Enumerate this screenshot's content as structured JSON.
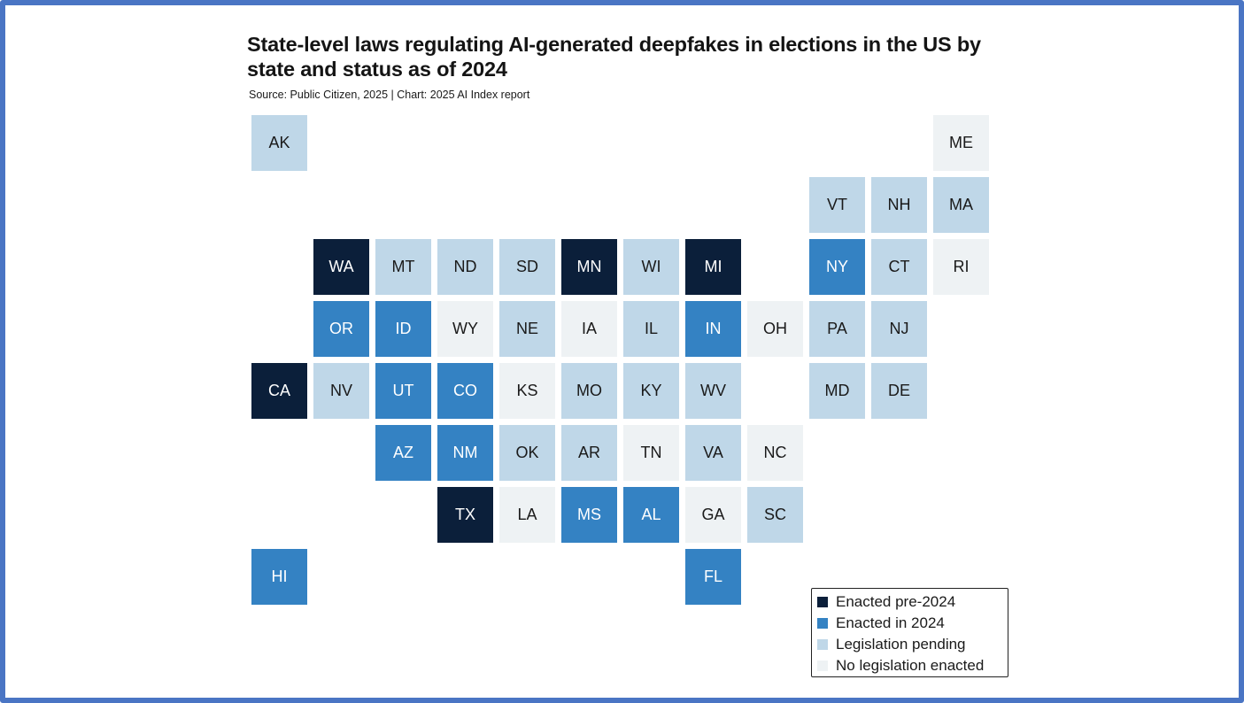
{
  "title": "State-level laws regulating AI-generated deepfakes in elections in the US by state and status as of 2024",
  "subtitle": "Source: Public Citizen, 2025 | Chart: 2025 AI Index report",
  "colors": {
    "frame": "#4a75c4",
    "enacted_pre_2024": "#0b1f3a",
    "enacted_2024": "#3482c3",
    "pending": "#bfd7e8",
    "none": "#eef2f4"
  },
  "legend": {
    "items": [
      {
        "status": "enacted_pre_2024",
        "label": "Enacted pre-2024"
      },
      {
        "status": "enacted_2024",
        "label": "Enacted in 2024"
      },
      {
        "status": "pending",
        "label": "Legislation pending"
      },
      {
        "status": "none",
        "label": "No legislation enacted"
      }
    ]
  },
  "states": [
    {
      "abbr": "AK",
      "status": "pending",
      "row": 0,
      "col": 0
    },
    {
      "abbr": "ME",
      "status": "none",
      "row": 0,
      "col": 11
    },
    {
      "abbr": "VT",
      "status": "pending",
      "row": 1,
      "col": 9
    },
    {
      "abbr": "NH",
      "status": "pending",
      "row": 1,
      "col": 10
    },
    {
      "abbr": "MA",
      "status": "pending",
      "row": 1,
      "col": 11
    },
    {
      "abbr": "WA",
      "status": "enacted_pre_2024",
      "row": 2,
      "col": 1
    },
    {
      "abbr": "MT",
      "status": "pending",
      "row": 2,
      "col": 2
    },
    {
      "abbr": "ND",
      "status": "pending",
      "row": 2,
      "col": 3
    },
    {
      "abbr": "SD",
      "status": "pending",
      "row": 2,
      "col": 4
    },
    {
      "abbr": "MN",
      "status": "enacted_pre_2024",
      "row": 2,
      "col": 5
    },
    {
      "abbr": "WI",
      "status": "pending",
      "row": 2,
      "col": 6
    },
    {
      "abbr": "MI",
      "status": "enacted_pre_2024",
      "row": 2,
      "col": 7
    },
    {
      "abbr": "NY",
      "status": "enacted_2024",
      "row": 2,
      "col": 9
    },
    {
      "abbr": "CT",
      "status": "pending",
      "row": 2,
      "col": 10
    },
    {
      "abbr": "RI",
      "status": "none",
      "row": 2,
      "col": 11
    },
    {
      "abbr": "OR",
      "status": "enacted_2024",
      "row": 3,
      "col": 1
    },
    {
      "abbr": "ID",
      "status": "enacted_2024",
      "row": 3,
      "col": 2
    },
    {
      "abbr": "WY",
      "status": "none",
      "row": 3,
      "col": 3
    },
    {
      "abbr": "NE",
      "status": "pending",
      "row": 3,
      "col": 4
    },
    {
      "abbr": "IA",
      "status": "none",
      "row": 3,
      "col": 5
    },
    {
      "abbr": "IL",
      "status": "pending",
      "row": 3,
      "col": 6
    },
    {
      "abbr": "IN",
      "status": "enacted_2024",
      "row": 3,
      "col": 7
    },
    {
      "abbr": "OH",
      "status": "none",
      "row": 3,
      "col": 8
    },
    {
      "abbr": "PA",
      "status": "pending",
      "row": 3,
      "col": 9
    },
    {
      "abbr": "NJ",
      "status": "pending",
      "row": 3,
      "col": 10
    },
    {
      "abbr": "CA",
      "status": "enacted_pre_2024",
      "row": 4,
      "col": 0
    },
    {
      "abbr": "NV",
      "status": "pending",
      "row": 4,
      "col": 1
    },
    {
      "abbr": "UT",
      "status": "enacted_2024",
      "row": 4,
      "col": 2
    },
    {
      "abbr": "CO",
      "status": "enacted_2024",
      "row": 4,
      "col": 3
    },
    {
      "abbr": "KS",
      "status": "none",
      "row": 4,
      "col": 4
    },
    {
      "abbr": "MO",
      "status": "pending",
      "row": 4,
      "col": 5
    },
    {
      "abbr": "KY",
      "status": "pending",
      "row": 4,
      "col": 6
    },
    {
      "abbr": "WV",
      "status": "pending",
      "row": 4,
      "col": 7
    },
    {
      "abbr": "MD",
      "status": "pending",
      "row": 4,
      "col": 9
    },
    {
      "abbr": "DE",
      "status": "pending",
      "row": 4,
      "col": 10
    },
    {
      "abbr": "AZ",
      "status": "enacted_2024",
      "row": 5,
      "col": 2
    },
    {
      "abbr": "NM",
      "status": "enacted_2024",
      "row": 5,
      "col": 3
    },
    {
      "abbr": "OK",
      "status": "pending",
      "row": 5,
      "col": 4
    },
    {
      "abbr": "AR",
      "status": "pending",
      "row": 5,
      "col": 5
    },
    {
      "abbr": "TN",
      "status": "none",
      "row": 5,
      "col": 6
    },
    {
      "abbr": "VA",
      "status": "pending",
      "row": 5,
      "col": 7
    },
    {
      "abbr": "NC",
      "status": "none",
      "row": 5,
      "col": 8
    },
    {
      "abbr": "TX",
      "status": "enacted_pre_2024",
      "row": 6,
      "col": 3
    },
    {
      "abbr": "LA",
      "status": "none",
      "row": 6,
      "col": 4
    },
    {
      "abbr": "MS",
      "status": "enacted_2024",
      "row": 6,
      "col": 5
    },
    {
      "abbr": "AL",
      "status": "enacted_2024",
      "row": 6,
      "col": 6
    },
    {
      "abbr": "GA",
      "status": "none",
      "row": 6,
      "col": 7
    },
    {
      "abbr": "SC",
      "status": "pending",
      "row": 6,
      "col": 8
    },
    {
      "abbr": "HI",
      "status": "enacted_2024",
      "row": 7,
      "col": 0
    },
    {
      "abbr": "FL",
      "status": "enacted_2024",
      "row": 7,
      "col": 7
    }
  ]
}
